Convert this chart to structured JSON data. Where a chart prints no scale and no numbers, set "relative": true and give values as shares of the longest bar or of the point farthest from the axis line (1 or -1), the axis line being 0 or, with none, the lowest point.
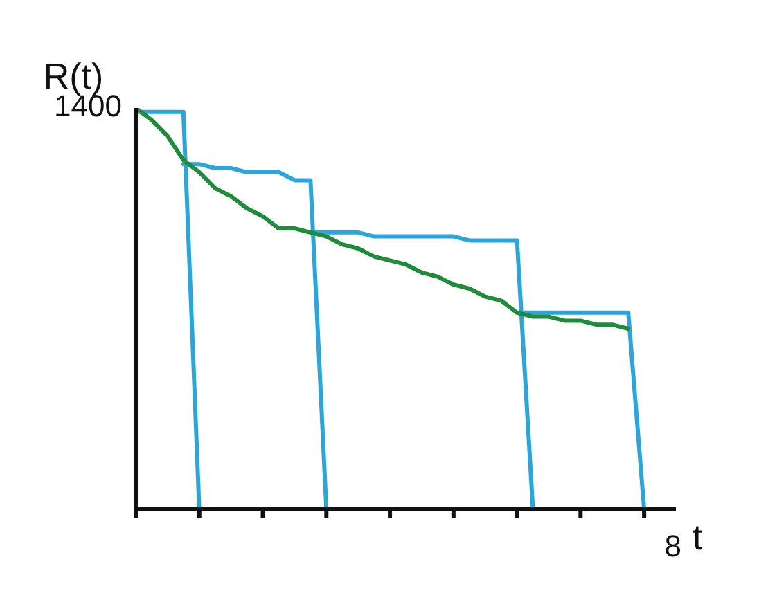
{
  "chart_data": {
    "type": "line",
    "relative": true,
    "xlabel": "t",
    "ylabel": "R(t)",
    "annotations": [
      "1400",
      "8"
    ],
    "categories": [
      null,
      null,
      null,
      null,
      null,
      null,
      null,
      null,
      null,
      null,
      null,
      null,
      null,
      null,
      null,
      null,
      null,
      null,
      null,
      null,
      null,
      null,
      null,
      null,
      null,
      null,
      null,
      null,
      null,
      null,
      null,
      null,
      null,
      null,
      null
    ],
    "marker": "none",
    "grid": false,
    "series": [
      {
        "color": "#2aa6dc",
        "values": [
          0.99,
          0.99,
          0.99,
          0.99,
          0,
          null,
          null,
          null,
          null,
          null,
          null,
          null,
          null,
          null,
          null,
          null,
          null,
          null,
          null,
          null,
          null,
          null,
          null,
          null,
          null,
          null,
          null,
          null,
          null,
          null,
          null,
          null,
          null,
          null,
          null
        ]
      },
      {
        "color": "#2aa6dc",
        "values": [
          null,
          null,
          null,
          0.86,
          0.86,
          0.85,
          0.85,
          0.84,
          0.84,
          0.84,
          0.82,
          0.82,
          0,
          null,
          null,
          null,
          null,
          null,
          null,
          null,
          null,
          null,
          null,
          null,
          null,
          null,
          null,
          null,
          null,
          null,
          null,
          null,
          null,
          null,
          null
        ]
      },
      {
        "color": "#2aa6dc",
        "values": [
          null,
          null,
          null,
          null,
          null,
          null,
          null,
          null,
          null,
          null,
          null,
          0.69,
          0.69,
          0.69,
          0.69,
          0.68,
          0.68,
          0.68,
          0.68,
          0.68,
          0.68,
          0.67,
          0.67,
          0.67,
          0.67,
          0,
          null,
          null,
          null,
          null,
          null,
          null,
          null,
          null,
          null
        ]
      },
      {
        "color": "#2aa6dc",
        "values": [
          null,
          null,
          null,
          null,
          null,
          null,
          null,
          null,
          null,
          null,
          null,
          null,
          null,
          null,
          null,
          null,
          null,
          null,
          null,
          null,
          null,
          null,
          null,
          null,
          0.49,
          0.49,
          0.49,
          0.49,
          0.49,
          0.49,
          0.49,
          0.49,
          0,
          null,
          null
        ]
      },
      {
        "color": "#1e8c3a",
        "values": [
          1,
          0.97,
          0.93,
          0.87,
          0.84,
          0.8,
          0.78,
          0.75,
          0.73,
          0.7,
          0.7,
          0.69,
          0.68,
          0.66,
          0.65,
          0.63,
          0.62,
          0.61,
          0.59,
          0.58,
          0.56,
          0.55,
          0.53,
          0.52,
          0.49,
          0.48,
          0.48,
          0.47,
          0.47,
          0.46,
          0.46,
          0.45,
          null,
          null,
          null
        ]
      }
    ]
  }
}
